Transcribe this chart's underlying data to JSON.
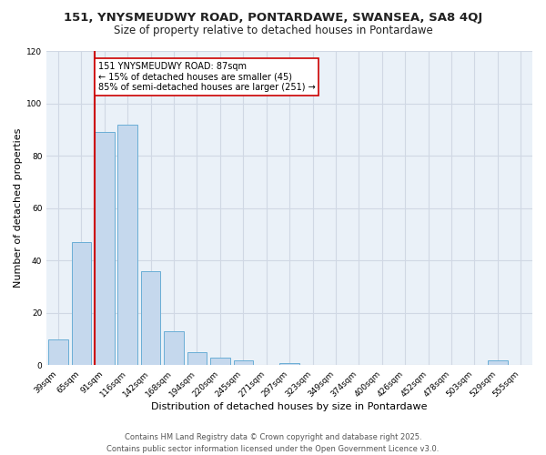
{
  "title_line1": "151, YNYSMEUDWY ROAD, PONTARDAWE, SWANSEA, SA8 4QJ",
  "title_line2": "Size of property relative to detached houses in Pontardawe",
  "xlabel": "Distribution of detached houses by size in Pontardawe",
  "ylabel": "Number of detached properties",
  "bar_labels": [
    "39sqm",
    "65sqm",
    "91sqm",
    "116sqm",
    "142sqm",
    "168sqm",
    "194sqm",
    "220sqm",
    "245sqm",
    "271sqm",
    "297sqm",
    "323sqm",
    "349sqm",
    "374sqm",
    "400sqm",
    "426sqm",
    "452sqm",
    "478sqm",
    "503sqm",
    "529sqm",
    "555sqm"
  ],
  "bar_values": [
    10,
    47,
    89,
    92,
    36,
    13,
    5,
    3,
    2,
    0,
    1,
    0,
    0,
    0,
    0,
    0,
    0,
    0,
    0,
    2,
    0
  ],
  "bar_color": "#c5d8ed",
  "bar_edge_color": "#6aaed6",
  "vline_color": "#cc0000",
  "annotation_text": "151 YNYSMEUDWY ROAD: 87sqm\n← 15% of detached houses are smaller (45)\n85% of semi-detached houses are larger (251) →",
  "annotation_box_color": "#ffffff",
  "annotation_box_edge": "#cc0000",
  "ylim": [
    0,
    120
  ],
  "yticks": [
    0,
    20,
    40,
    60,
    80,
    100,
    120
  ],
  "fig_bg_color": "#ffffff",
  "plot_bg_color": "#eaf1f8",
  "grid_color": "#d0d8e4",
  "footer_line1": "Contains HM Land Registry data © Crown copyright and database right 2025.",
  "footer_line2": "Contains public sector information licensed under the Open Government Licence v3.0.",
  "title_fontsize": 9.5,
  "subtitle_fontsize": 8.5,
  "axis_label_fontsize": 8,
  "tick_fontsize": 6.5,
  "annotation_fontsize": 7,
  "footer_fontsize": 6
}
